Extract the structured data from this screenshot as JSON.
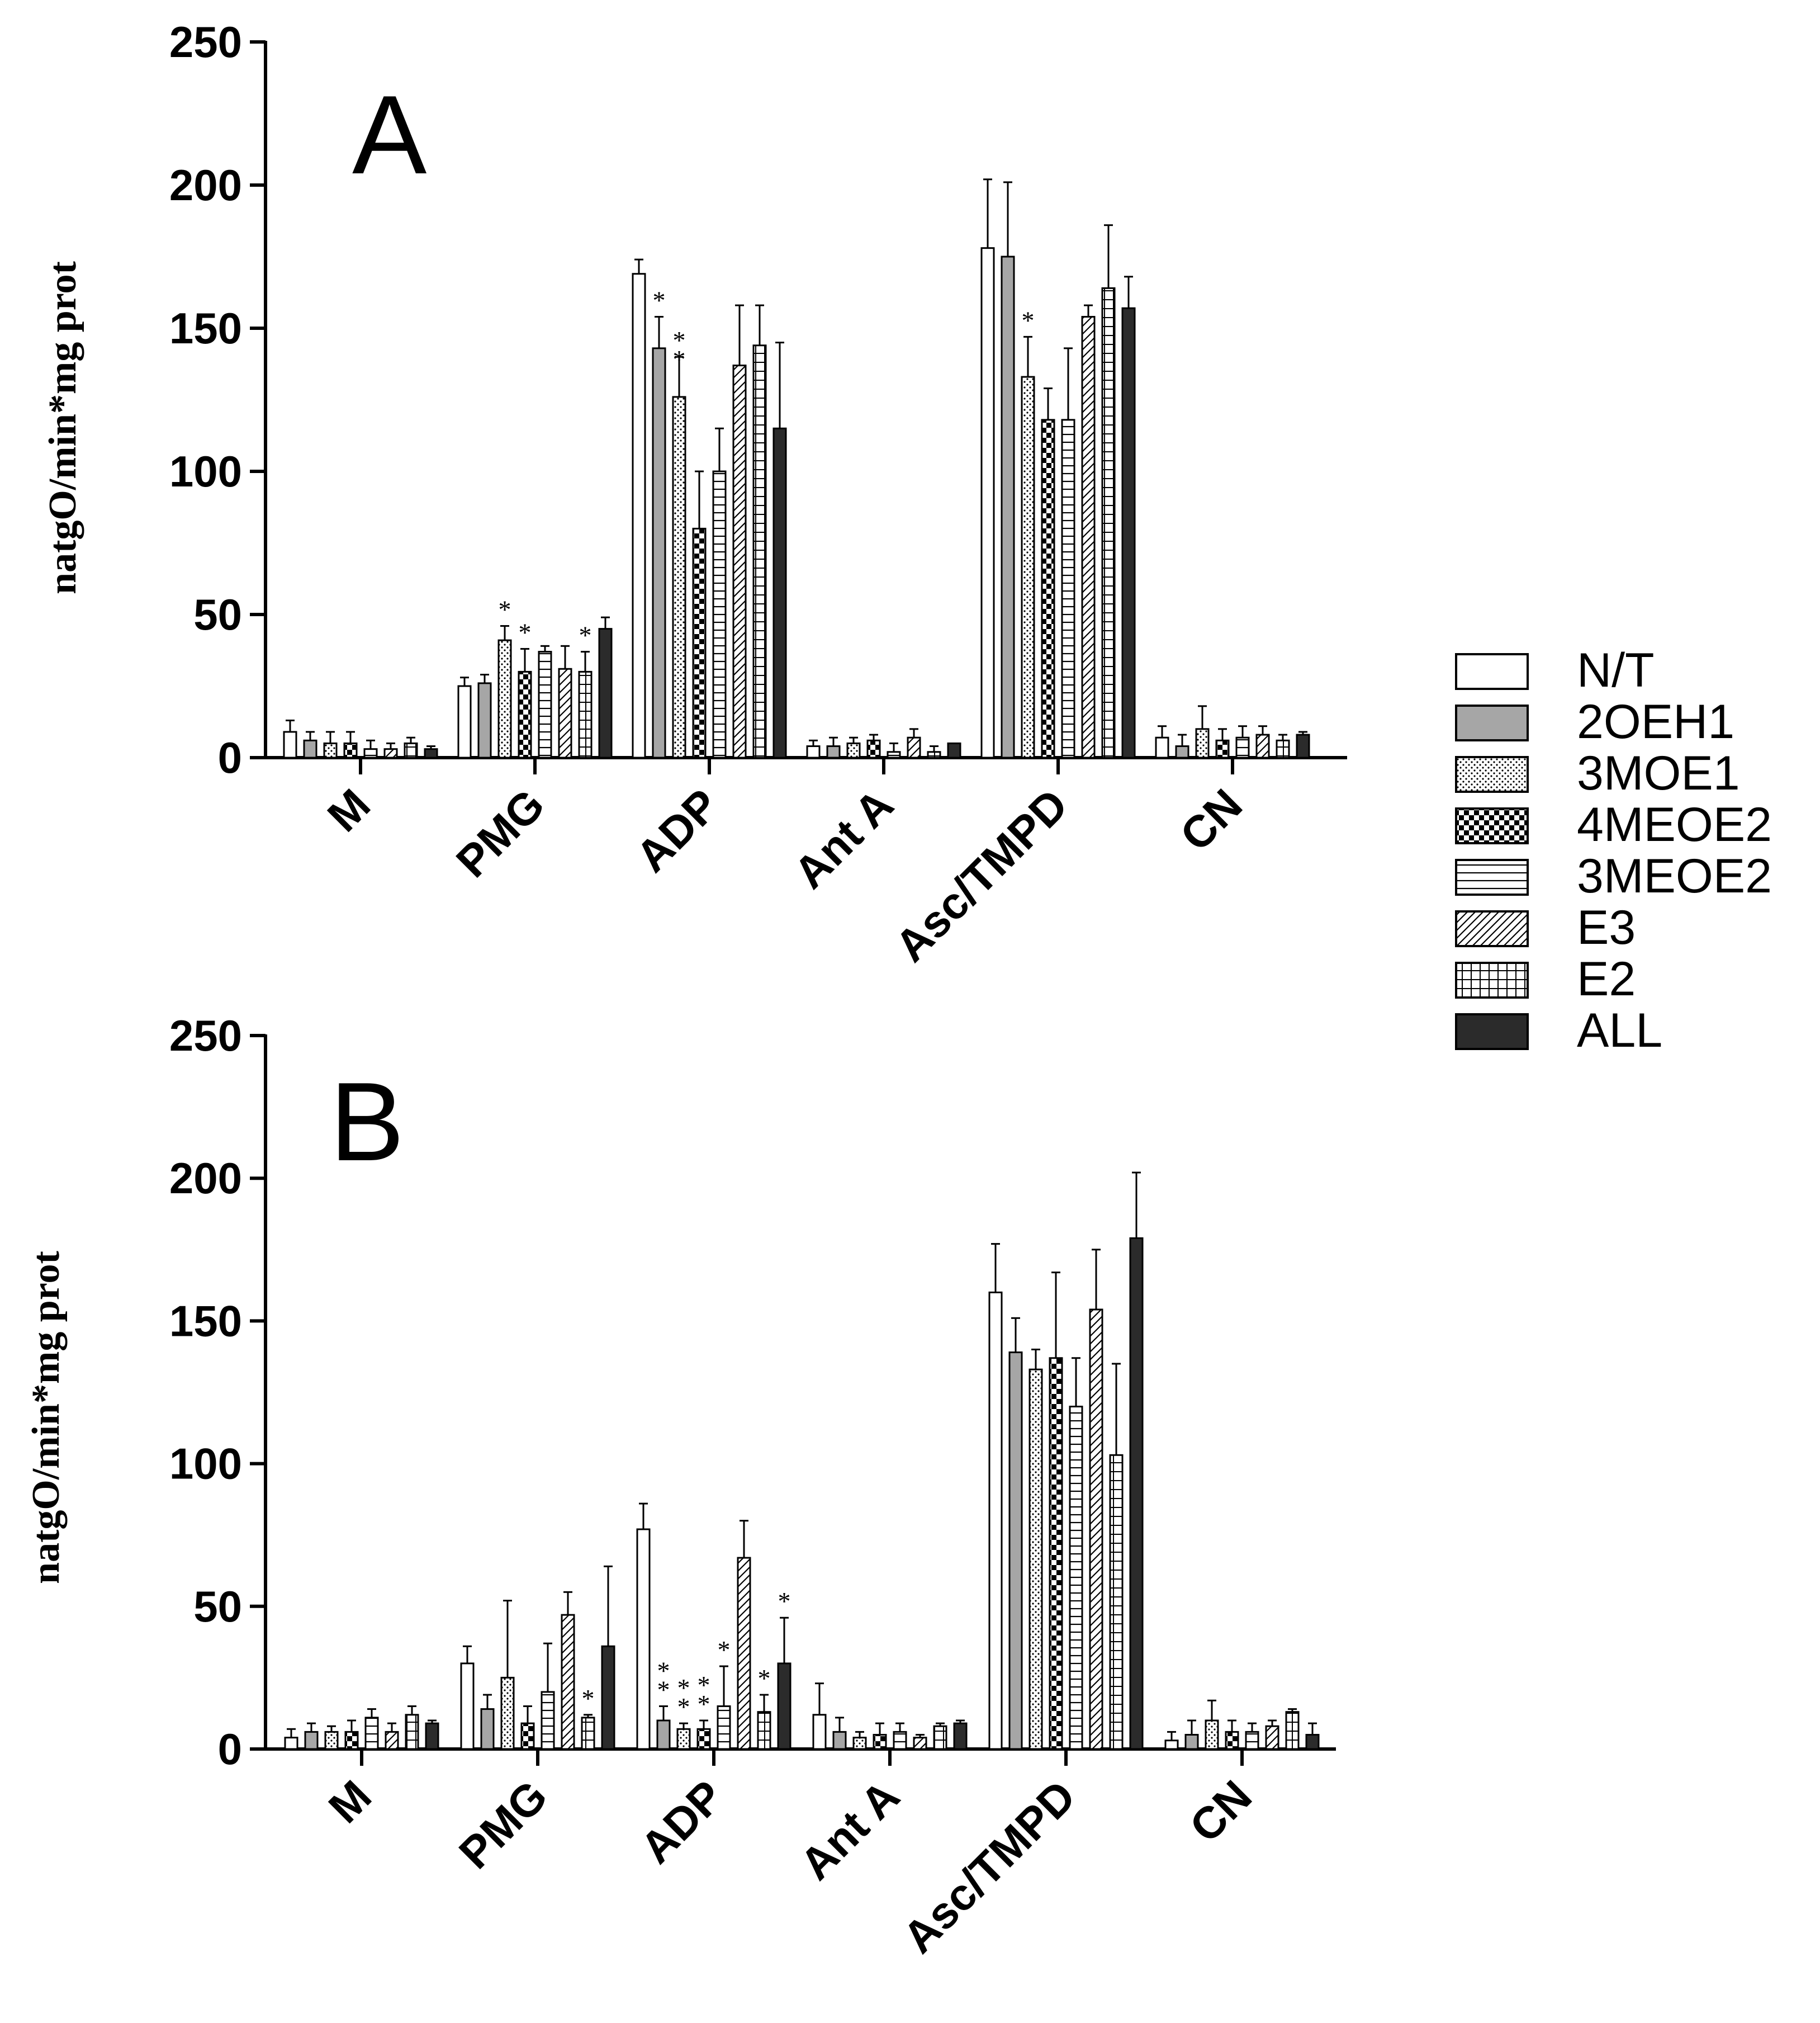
{
  "colors": {
    "axis": "#000000",
    "bar_outline": "#000000",
    "gray": "#a6a6a6",
    "dark": "#2b2b2b",
    "white": "#ffffff"
  },
  "legend": [
    {
      "name": "N/T",
      "pattern": "white"
    },
    {
      "name": "2OEH1",
      "pattern": "gray"
    },
    {
      "name": "3MOE1",
      "pattern": "dots"
    },
    {
      "name": "4MEOE2",
      "pattern": "checker"
    },
    {
      "name": "3MEOE2",
      "pattern": "hlines"
    },
    {
      "name": "E3",
      "pattern": "diag"
    },
    {
      "name": "E2",
      "pattern": "grid"
    },
    {
      "name": "ALL",
      "pattern": "dark"
    }
  ],
  "chart_data": [
    {
      "type": "bar",
      "panel": "A",
      "ylabel": "natgO/min*mg prot",
      "ylim": [
        0,
        250
      ],
      "yticks": [
        "0",
        "50",
        "100",
        "150",
        "200",
        "250"
      ],
      "categories": [
        "M",
        "PMG",
        "ADP",
        "Ant A",
        "Asc/TMPD",
        "CN"
      ],
      "series": [
        {
          "name": "N/T",
          "values": [
            9,
            25,
            169,
            4,
            178,
            7
          ],
          "errors": [
            4,
            3,
            5,
            2,
            24,
            4
          ]
        },
        {
          "name": "2OEH1",
          "values": [
            6,
            26,
            143,
            4,
            175,
            4
          ],
          "errors": [
            3,
            3,
            11,
            3,
            26,
            4
          ]
        },
        {
          "name": "3MOE1",
          "values": [
            5,
            41,
            126,
            5,
            133,
            10
          ],
          "errors": [
            4,
            5,
            14,
            2,
            14,
            8
          ]
        },
        {
          "name": "4MEOE2",
          "values": [
            5,
            30,
            80,
            6,
            118,
            6
          ],
          "errors": [
            4,
            8,
            20,
            2,
            11,
            4
          ]
        },
        {
          "name": "3MEOE2",
          "values": [
            3,
            37,
            100,
            2,
            118,
            7
          ],
          "errors": [
            3,
            2,
            15,
            3,
            25,
            4
          ]
        },
        {
          "name": "E3",
          "values": [
            3,
            31,
            137,
            7,
            154,
            8
          ],
          "errors": [
            2,
            8,
            21,
            3,
            4,
            3
          ]
        },
        {
          "name": "E2",
          "values": [
            5,
            30,
            144,
            2,
            164,
            6
          ],
          "errors": [
            2,
            7,
            14,
            2,
            22,
            2
          ]
        },
        {
          "name": "ALL",
          "values": [
            3,
            45,
            115,
            5,
            157,
            8
          ],
          "errors": [
            1,
            4,
            30,
            0,
            11,
            1
          ]
        }
      ],
      "annotations": [
        {
          "category": "PMG",
          "series": "3MOE1",
          "text": "*"
        },
        {
          "category": "PMG",
          "series": "4MEOE2",
          "text": "*"
        },
        {
          "category": "PMG",
          "series": "E2",
          "text": "*"
        },
        {
          "category": "ADP",
          "series": "2OEH1",
          "text": "*"
        },
        {
          "category": "ADP",
          "series": "3MOE1",
          "text": "*"
        },
        {
          "category": "ADP",
          "series": "3MOE1",
          "text": "*"
        },
        {
          "category": "Asc/TMPD",
          "series": "3MOE1",
          "text": "*"
        }
      ]
    },
    {
      "type": "bar",
      "panel": "B",
      "ylabel": "natgO/min*mg prot",
      "ylim": [
        0,
        250
      ],
      "yticks": [
        "0",
        "50",
        "100",
        "150",
        "200",
        "250"
      ],
      "categories": [
        "M",
        "PMG",
        "ADP",
        "Ant A",
        "Asc/TMPD",
        "CN"
      ],
      "series": [
        {
          "name": "N/T",
          "values": [
            4,
            30,
            77,
            12,
            160,
            3
          ],
          "errors": [
            3,
            6,
            9,
            11,
            17,
            3
          ]
        },
        {
          "name": "2OEH1",
          "values": [
            6,
            14,
            10,
            6,
            139,
            5
          ],
          "errors": [
            3,
            5,
            5,
            5,
            12,
            5
          ]
        },
        {
          "name": "3MOE1",
          "values": [
            6,
            25,
            7,
            4,
            133,
            10
          ],
          "errors": [
            2,
            27,
            2,
            2,
            7,
            7
          ]
        },
        {
          "name": "4MEOE2",
          "values": [
            6,
            9,
            7,
            5,
            137,
            6
          ],
          "errors": [
            4,
            6,
            3,
            4,
            30,
            4
          ]
        },
        {
          "name": "3MEOE2",
          "values": [
            11,
            20,
            15,
            6,
            120,
            6
          ],
          "errors": [
            3,
            17,
            14,
            3,
            17,
            3
          ]
        },
        {
          "name": "E3",
          "values": [
            6,
            47,
            67,
            4,
            154,
            8
          ],
          "errors": [
            3,
            8,
            13,
            1,
            21,
            2
          ]
        },
        {
          "name": "E2",
          "values": [
            12,
            11,
            13,
            8,
            103,
            13
          ],
          "errors": [
            3,
            1,
            6,
            1,
            32,
            1
          ]
        },
        {
          "name": "ALL",
          "values": [
            9,
            36,
            30,
            9,
            179,
            5
          ],
          "errors": [
            1,
            28,
            16,
            1,
            23,
            4
          ]
        }
      ],
      "annotations": [
        {
          "category": "PMG",
          "series": "E2",
          "text": "*"
        },
        {
          "category": "ADP",
          "series": "2OEH1",
          "text": "**"
        },
        {
          "category": "ADP",
          "series": "3MOE1",
          "text": "**"
        },
        {
          "category": "ADP",
          "series": "4MEOE2",
          "text": "**"
        },
        {
          "category": "ADP",
          "series": "3MEOE2",
          "text": "*"
        },
        {
          "category": "ADP",
          "series": "E2",
          "text": "*"
        },
        {
          "category": "ADP",
          "series": "ALL",
          "text": "*"
        }
      ]
    }
  ]
}
